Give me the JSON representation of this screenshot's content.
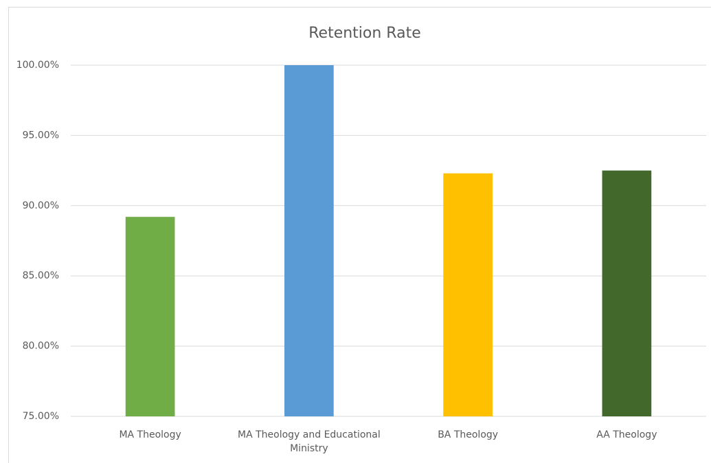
{
  "chart_data": {
    "type": "bar",
    "title": "Retention Rate",
    "categories": [
      "MA Theology",
      "MA Theology and Educational Ministry",
      "BA Theology",
      "AA Theology"
    ],
    "values": [
      89.2,
      100,
      92.3,
      92.5
    ],
    "colors": [
      "#70ad47",
      "#5b9bd5",
      "#ffc000",
      "#43682b"
    ],
    "ylim": [
      75,
      100
    ],
    "yticks": [
      {
        "value": 75,
        "label": "75.00%"
      },
      {
        "value": 80,
        "label": "80.00%"
      },
      {
        "value": 85,
        "label": "85.00%"
      },
      {
        "value": 90,
        "label": "90.00%"
      },
      {
        "value": 95,
        "label": "95.00%"
      },
      {
        "value": 100,
        "label": "100.00%"
      }
    ],
    "grid": true
  }
}
